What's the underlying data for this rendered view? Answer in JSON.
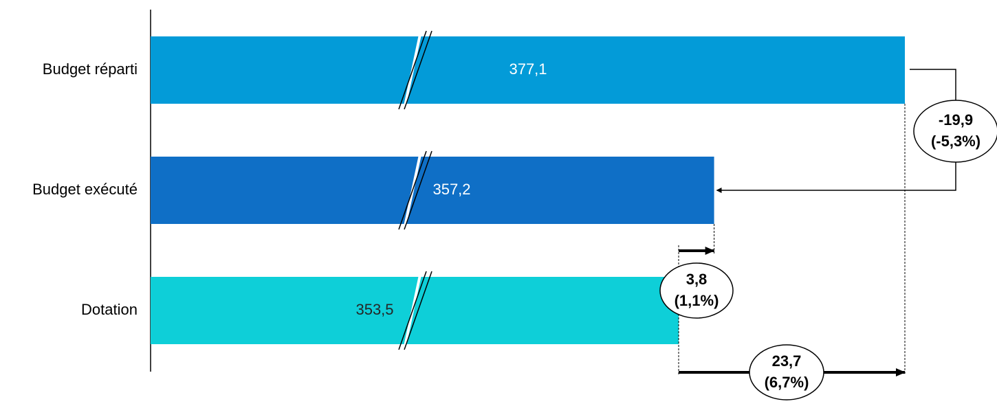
{
  "chart_data": {
    "type": "bar",
    "orientation": "horizontal",
    "categories": [
      "Budget réparti",
      "Budget exécuté",
      "Dotation"
    ],
    "values": [
      377.1,
      357.2,
      353.5
    ],
    "value_labels": [
      "377,1",
      "357,2",
      "353,5"
    ],
    "colors": [
      "#039bd8",
      "#0f6fc6",
      "#0ecfd8"
    ],
    "label_colors": [
      "#ffffff",
      "#ffffff",
      "#262626"
    ],
    "annotations": [
      {
        "text": [
          "-19,9",
          "(-5,3%)"
        ]
      },
      {
        "text": [
          "3,8",
          "(1,1%)"
        ]
      },
      {
        "text": [
          "23,7",
          "(6,7%)"
        ]
      }
    ]
  }
}
